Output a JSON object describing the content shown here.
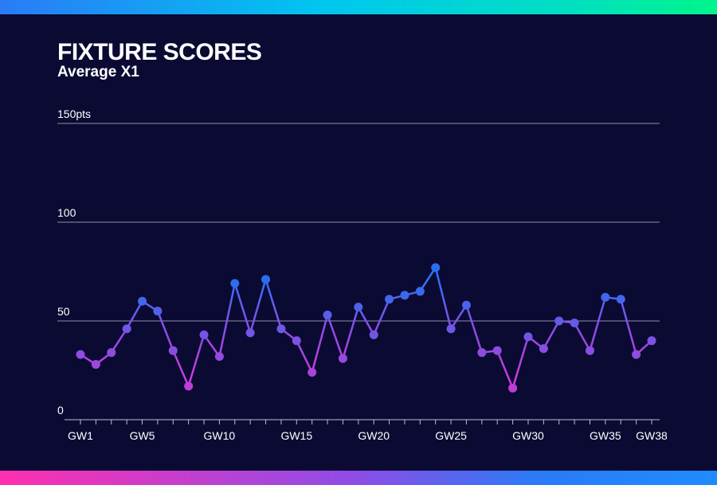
{
  "header": {
    "title": "FIXTURE SCORES",
    "subtitle": "Average X1"
  },
  "chart_data": {
    "type": "line",
    "title": "FIXTURE SCORES",
    "subtitle": "Average X1",
    "xlabel": "",
    "ylabel": "",
    "ylim": [
      0,
      150
    ],
    "y_ticks": [
      {
        "value": 0,
        "label": "0"
      },
      {
        "value": 50,
        "label": "50"
      },
      {
        "value": 100,
        "label": "100"
      },
      {
        "value": 150,
        "label": "150pts"
      }
    ],
    "x_tick_labels": [
      {
        "index": 0,
        "label": "GW1"
      },
      {
        "index": 4,
        "label": "GW5"
      },
      {
        "index": 9,
        "label": "GW10"
      },
      {
        "index": 14,
        "label": "GW15"
      },
      {
        "index": 19,
        "label": "GW20"
      },
      {
        "index": 24,
        "label": "GW25"
      },
      {
        "index": 29,
        "label": "GW30"
      },
      {
        "index": 34,
        "label": "GW35"
      },
      {
        "index": 37,
        "label": "GW38"
      }
    ],
    "categories": [
      "GW1",
      "GW2",
      "GW3",
      "GW4",
      "GW5",
      "GW6",
      "GW7",
      "GW8",
      "GW9",
      "GW10",
      "GW11",
      "GW12",
      "GW13",
      "GW14",
      "GW15",
      "GW16",
      "GW17",
      "GW18",
      "GW19",
      "GW20",
      "GW21",
      "GW22",
      "GW23",
      "GW24",
      "GW25",
      "GW26",
      "GW27",
      "GW28",
      "GW29",
      "GW30",
      "GW31",
      "GW32",
      "GW33",
      "GW34",
      "GW35",
      "GW36",
      "GW37",
      "GW38"
    ],
    "series": [
      {
        "values": [
          33,
          28,
          34,
          46,
          60,
          55,
          35,
          17,
          43,
          32,
          69,
          44,
          71,
          46,
          40,
          24,
          53,
          31,
          57,
          43,
          61,
          63,
          65,
          77,
          46,
          58,
          34,
          35,
          16,
          42,
          36,
          50,
          49,
          35,
          62,
          61,
          33,
          40
        ]
      }
    ],
    "grid": true,
    "colors": {
      "low": "#c03cd6",
      "high": "#2a6ef0",
      "grid": "#8f8fa8",
      "axis": "#bdbdd0"
    }
  }
}
